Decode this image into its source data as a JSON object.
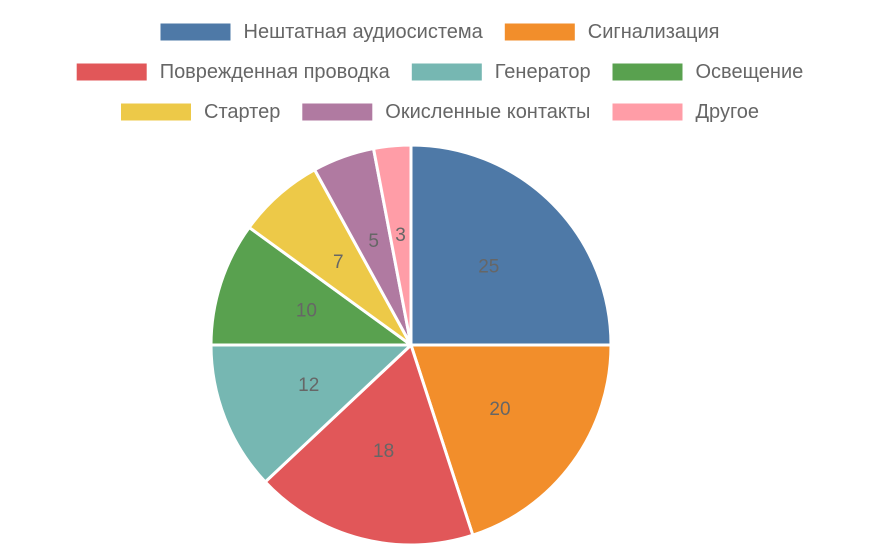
{
  "chart_data": {
    "type": "pie",
    "title": "",
    "legend_position": "top",
    "show_value_labels": true,
    "slices": [
      {
        "label": "Нештатная аудиосистема",
        "value": 25,
        "color": "#4e79a7"
      },
      {
        "label": "Сигнализация",
        "value": 20,
        "color": "#f28e2b"
      },
      {
        "label": "Поврежденная проводка",
        "value": 18,
        "color": "#e15759"
      },
      {
        "label": "Генератор",
        "value": 12,
        "color": "#76b7b2"
      },
      {
        "label": "Освещение",
        "value": 10,
        "color": "#59a14f"
      },
      {
        "label": "Стартер",
        "value": 7,
        "color": "#edc948"
      },
      {
        "label": "Окисленные контакты",
        "value": 5,
        "color": "#b07aa1"
      },
      {
        "label": "Другое",
        "value": 3,
        "color": "#ff9da7"
      }
    ]
  }
}
